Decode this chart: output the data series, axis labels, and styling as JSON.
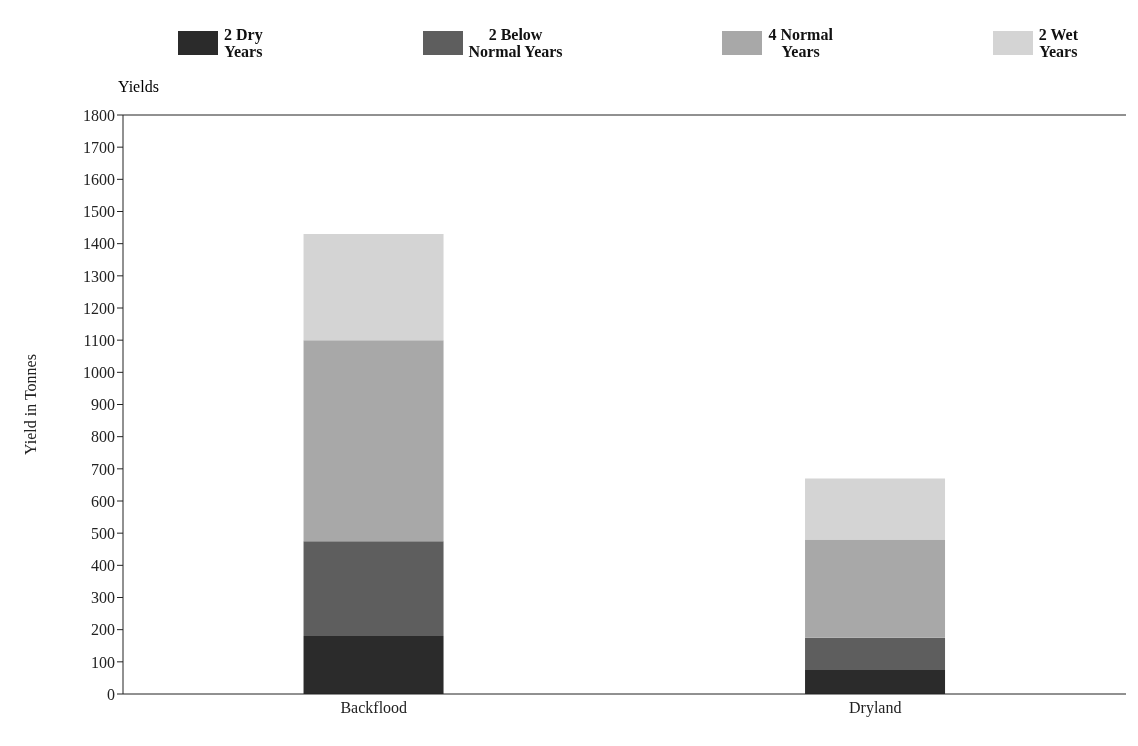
{
  "chart_data": {
    "type": "bar",
    "stacked": true,
    "ylabel": "Yield in Tonnes",
    "annotations": [
      "Yields"
    ],
    "categories": [
      "Backflood",
      "Dryland"
    ],
    "series": [
      {
        "name": "2 Dry Years",
        "color": "#2b2b2b",
        "values": [
          180,
          75
        ]
      },
      {
        "name": "2 Below Normal Years",
        "color": "#5e5e5e",
        "values": [
          295,
          100
        ]
      },
      {
        "name": "4 Normal Years",
        "color": "#a8a8a8",
        "values": [
          625,
          305
        ]
      },
      {
        "name": "2 Wet Years",
        "color": "#d4d4d4",
        "values": [
          330,
          190
        ]
      }
    ],
    "ylim": [
      0,
      1800
    ],
    "yticks": [
      0,
      100,
      200,
      300,
      400,
      500,
      600,
      700,
      800,
      900,
      1000,
      1100,
      1200,
      1300,
      1400,
      1500,
      1600,
      1700,
      1800
    ],
    "grid": false,
    "legend": "top"
  }
}
